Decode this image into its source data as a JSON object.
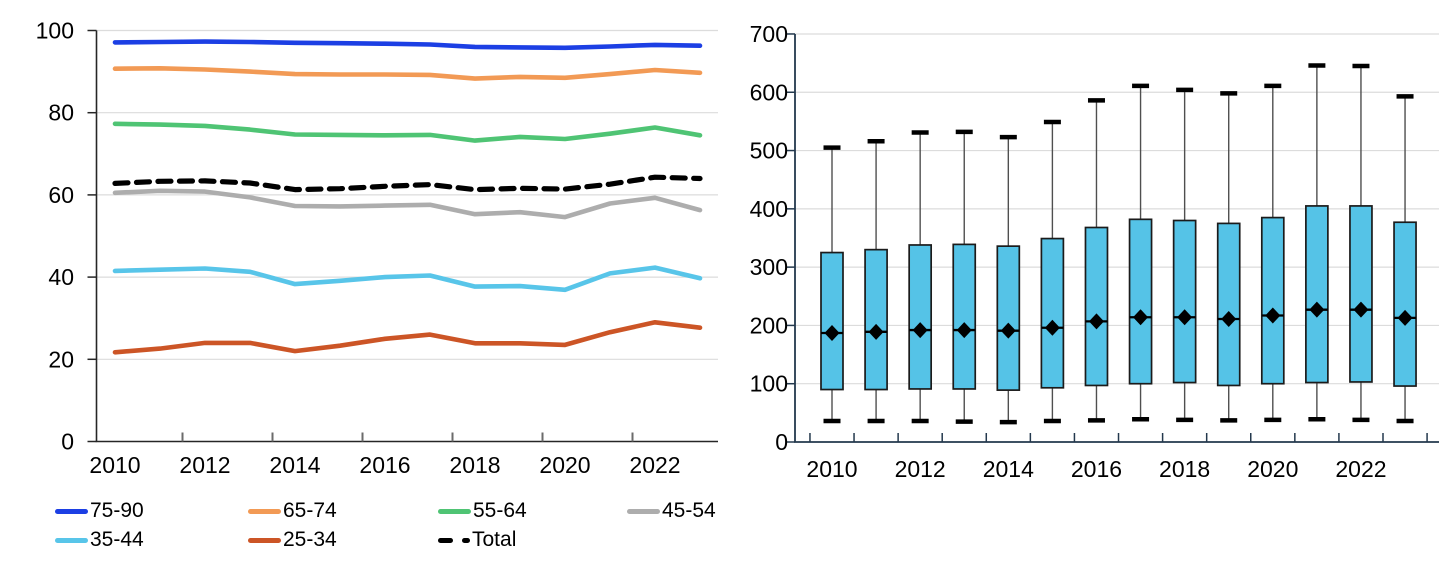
{
  "page": {
    "background": "#ffffff"
  },
  "colors": {
    "gridline": "#dcdcdc",
    "left_axis": "#262626",
    "right_axis": "#23384d",
    "whisker_line": "#4f4f4f",
    "whisker_cap": "#000000",
    "box_fill": "#55c3e7",
    "box_stroke": "#1b1b1b",
    "median": "#000000",
    "tick_minor": "#6b6b6b",
    "text": "#000000"
  },
  "chart_data": [
    {
      "type": "line",
      "title": "",
      "xlabel": "",
      "ylabel": "",
      "x": [
        2010,
        2011,
        2012,
        2013,
        2014,
        2015,
        2016,
        2017,
        2018,
        2019,
        2020,
        2021,
        2022,
        2023
      ],
      "ylim": [
        0,
        100
      ],
      "yticks": [
        0,
        20,
        40,
        60,
        80,
        100
      ],
      "ytick_labels": [
        "0",
        "20",
        "40",
        "60",
        "80",
        "100"
      ],
      "xtick_label_years": [
        2010,
        2012,
        2014,
        2016,
        2018,
        2020,
        2022
      ],
      "xtick_labels": [
        "2010",
        "2012",
        "2014",
        "2016",
        "2018",
        "2020",
        "2022"
      ],
      "grid": "horizontal",
      "legend_position": "bottom",
      "series": [
        {
          "name": "75-90",
          "color": "#1c3fe4",
          "dashed": false,
          "values": [
            97.1,
            97.2,
            97.3,
            97.2,
            97.0,
            96.9,
            96.8,
            96.6,
            96.0,
            95.9,
            95.8,
            96.1,
            96.5,
            96.3
          ]
        },
        {
          "name": "65-74",
          "color": "#f29a55",
          "dashed": false,
          "values": [
            90.7,
            90.8,
            90.5,
            90.0,
            89.4,
            89.3,
            89.3,
            89.2,
            88.3,
            88.7,
            88.5,
            89.4,
            90.4,
            89.7
          ]
        },
        {
          "name": "55-64",
          "color": "#4fc474",
          "dashed": false,
          "values": [
            77.3,
            77.1,
            76.8,
            75.9,
            74.7,
            74.6,
            74.5,
            74.6,
            73.2,
            74.1,
            73.6,
            74.9,
            76.4,
            74.5
          ]
        },
        {
          "name": "45-54",
          "color": "#adadad",
          "dashed": false,
          "values": [
            60.5,
            61.0,
            60.8,
            59.4,
            57.3,
            57.2,
            57.4,
            57.6,
            55.3,
            55.8,
            54.6,
            57.9,
            59.3,
            56.3
          ]
        },
        {
          "name": "35-44",
          "color": "#58c5e9",
          "dashed": false,
          "values": [
            41.5,
            41.8,
            42.1,
            41.3,
            38.3,
            39.1,
            40.0,
            40.4,
            37.7,
            37.8,
            36.9,
            40.9,
            42.3,
            39.7
          ]
        },
        {
          "name": "25-34",
          "color": "#cc5526",
          "dashed": false,
          "values": [
            21.7,
            22.6,
            24.0,
            24.0,
            22.0,
            23.3,
            25.0,
            26.0,
            23.9,
            23.9,
            23.5,
            26.6,
            29.0,
            27.7
          ]
        },
        {
          "name": "Total",
          "color": "#000000",
          "dashed": true,
          "values": [
            62.8,
            63.3,
            63.4,
            62.9,
            61.3,
            61.5,
            62.1,
            62.5,
            61.3,
            61.6,
            61.4,
            62.6,
            64.3,
            64.0
          ]
        }
      ]
    },
    {
      "type": "boxplot",
      "title": "",
      "xlabel": "",
      "ylabel": "",
      "x": [
        2010,
        2011,
        2012,
        2013,
        2014,
        2015,
        2016,
        2017,
        2018,
        2019,
        2020,
        2021,
        2022,
        2023
      ],
      "ylim": [
        0,
        700
      ],
      "yticks": [
        0,
        100,
        200,
        300,
        400,
        500,
        600,
        700
      ],
      "ytick_labels": [
        "0",
        "100",
        "200",
        "300",
        "400",
        "500",
        "600",
        "700"
      ],
      "xtick_label_years": [
        2010,
        2012,
        2014,
        2016,
        2018,
        2020,
        2022
      ],
      "xtick_labels": [
        "2010",
        "2012",
        "2014",
        "2016",
        "2018",
        "2020",
        "2022"
      ],
      "grid": "horizontal",
      "marker": "diamond",
      "whisker_high": [
        505,
        516,
        531,
        532,
        523,
        549,
        586,
        611,
        604,
        598,
        611,
        646,
        645,
        593
      ],
      "q3": [
        325,
        330,
        338,
        339,
        336,
        349,
        368,
        382,
        380,
        375,
        385,
        405,
        405,
        377
      ],
      "median": [
        187,
        189,
        192,
        192,
        191,
        196,
        207,
        214,
        214,
        211,
        217,
        227,
        227,
        213
      ],
      "q1": [
        90,
        90,
        91,
        91,
        89,
        93,
        97,
        100,
        102,
        97,
        100,
        102,
        103,
        96
      ],
      "whisker_low": [
        36,
        36,
        36,
        35,
        34,
        36,
        37,
        39,
        38,
        37,
        38,
        39,
        38,
        36
      ]
    }
  ],
  "legend": {
    "items": [
      {
        "label": "75-90",
        "color": "#1c3fe4",
        "dashed": false
      },
      {
        "label": "65-74",
        "color": "#f29a55",
        "dashed": false
      },
      {
        "label": "55-64",
        "color": "#4fc474",
        "dashed": false
      },
      {
        "label": "45-54",
        "color": "#adadad",
        "dashed": false
      },
      {
        "label": "35-44",
        "color": "#58c5e9",
        "dashed": false
      },
      {
        "label": "25-34",
        "color": "#cc5526",
        "dashed": false
      },
      {
        "label": "Total",
        "color": "#000000",
        "dashed": true
      }
    ]
  }
}
